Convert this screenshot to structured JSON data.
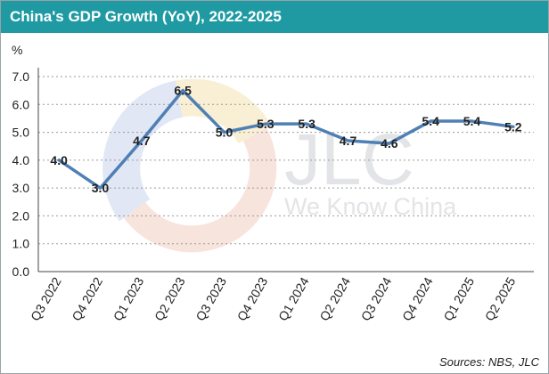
{
  "title": "China's GDP Growth (YoY), 2022-2025",
  "source": "Sources: NBS, JLC",
  "watermark": {
    "logo": "JLC",
    "tagline": "We Know China"
  },
  "colors": {
    "header": "#1f9aa3",
    "line": "#4e7fb5",
    "grid": "#9a9a9a"
  },
  "chart_data": {
    "type": "line",
    "title": "China's GDP Growth (YoY), 2022-2025",
    "ylabel": "%",
    "xlabel": "",
    "ylim": [
      0,
      7
    ],
    "yticks": [
      "0.0",
      "1.0",
      "2.0",
      "3.0",
      "4.0",
      "5.0",
      "6.0",
      "7.0"
    ],
    "grid": true,
    "legend": "none",
    "categories": [
      "Q3 2022",
      "Q4 2022",
      "Q1 2023",
      "Q2 2023",
      "Q3 2023",
      "Q4 2023",
      "Q1 2024",
      "Q2 2024",
      "Q3 2024",
      "Q4 2024",
      "Q1 2025",
      "Q2 2025"
    ],
    "series": [
      {
        "values": [
          4.0,
          3.0,
          4.7,
          6.5,
          5.0,
          5.3,
          5.3,
          4.7,
          4.6,
          5.4,
          5.4,
          5.2
        ],
        "labels": [
          "4.0",
          "3.0",
          "4.7",
          "6.5",
          "5.0",
          "5.3",
          "5.3",
          "4.7",
          "4.6",
          "5.4",
          "5.4",
          "5.2"
        ]
      }
    ]
  }
}
